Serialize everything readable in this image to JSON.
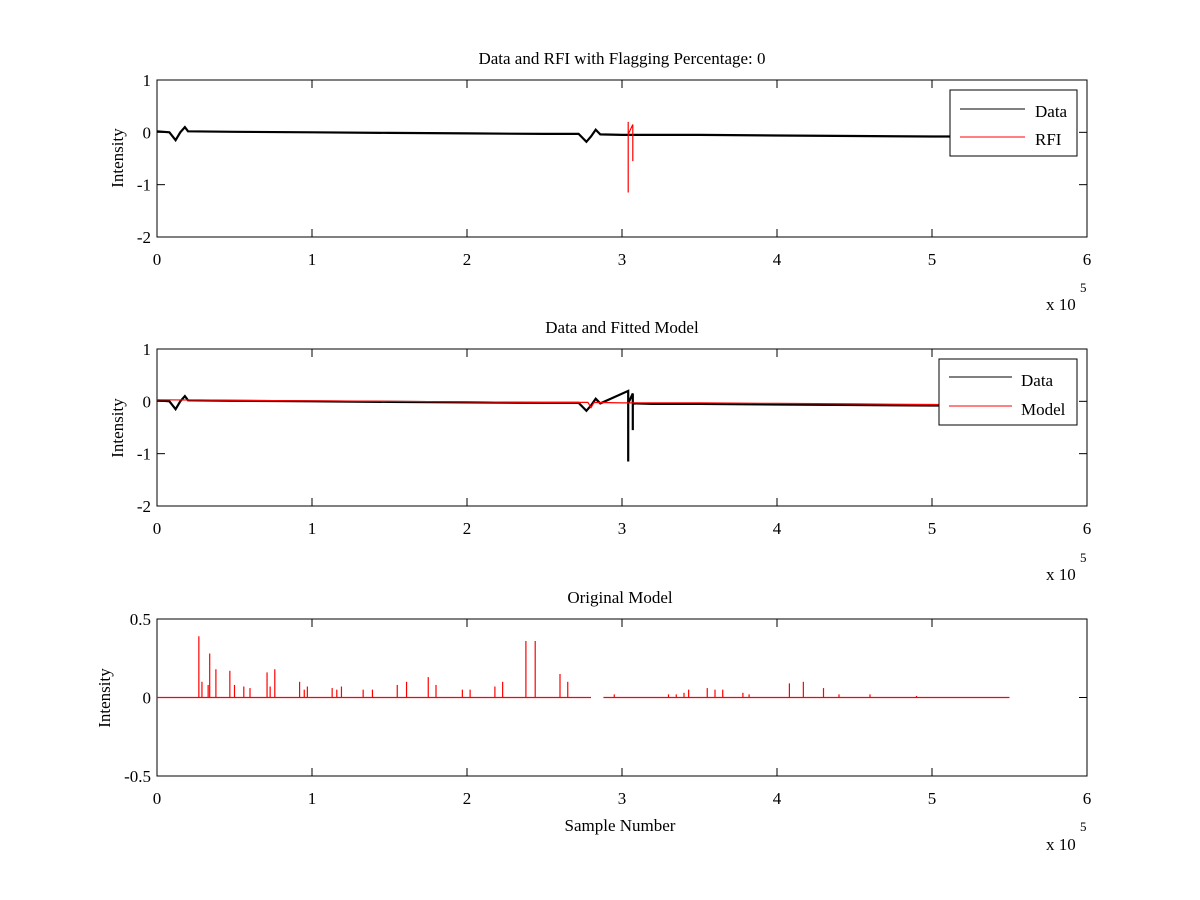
{
  "chart_data": [
    {
      "type": "line",
      "title": "Data and RFI with Flagging Percentage: 0",
      "xlabel": "",
      "ylabel": "Intensity",
      "xlim": [
        0,
        6
      ],
      "ylim": [
        -2,
        1
      ],
      "x_scale_label": "x 10",
      "x_scale_exponent": "5",
      "xticks": [
        "0",
        "1",
        "2",
        "3",
        "4",
        "5",
        "6"
      ],
      "yticks": [
        "-2",
        "-1",
        "0",
        "1"
      ],
      "grid": false,
      "legend_location": "top-right",
      "series": [
        {
          "name": "Data",
          "color": "#000000",
          "x": [
            0,
            0.08,
            0.12,
            0.15,
            0.18,
            0.2,
            0.5,
            1.0,
            1.5,
            2.0,
            2.5,
            2.72,
            2.77,
            2.8,
            2.83,
            2.86,
            3.0,
            3.5,
            4.0,
            4.5,
            5.0,
            5.5
          ],
          "y": [
            0.02,
            0.0,
            -0.15,
            0.0,
            0.1,
            0.02,
            0.01,
            0.0,
            -0.01,
            -0.02,
            -0.03,
            -0.03,
            -0.18,
            -0.08,
            0.05,
            -0.04,
            -0.05,
            -0.05,
            -0.06,
            -0.07,
            -0.08,
            -0.08
          ]
        },
        {
          "name": "RFI",
          "color": "#ff0000",
          "x": [
            3.04,
            3.04,
            3.04,
            3.07,
            3.07,
            3.07
          ],
          "y": [
            0.2,
            -1.15,
            -0.04,
            0.15,
            -0.55,
            -0.04
          ]
        }
      ]
    },
    {
      "type": "line",
      "title": "Data and Fitted Model",
      "xlabel": "",
      "ylabel": "Intensity",
      "xlim": [
        0,
        6
      ],
      "ylim": [
        -2,
        1
      ],
      "x_scale_label": "x 10",
      "x_scale_exponent": "5",
      "xticks": [
        "0",
        "1",
        "2",
        "3",
        "4",
        "5",
        "6"
      ],
      "yticks": [
        "-2",
        "-1",
        "0",
        "1"
      ],
      "grid": false,
      "legend_location": "top-right",
      "series": [
        {
          "name": "Data",
          "color": "#000000",
          "x": [
            0,
            0.08,
            0.12,
            0.15,
            0.18,
            0.2,
            0.5,
            1.0,
            1.5,
            2.0,
            2.5,
            2.72,
            2.77,
            2.8,
            2.83,
            2.86,
            3.04,
            3.04,
            3.04,
            3.07,
            3.07,
            3.07,
            3.2,
            3.5,
            4.0,
            4.5,
            5.0,
            5.5
          ],
          "y": [
            0.02,
            0.0,
            -0.15,
            0.0,
            0.1,
            0.02,
            0.01,
            0.0,
            -0.01,
            -0.02,
            -0.03,
            -0.03,
            -0.18,
            -0.08,
            0.05,
            -0.04,
            0.2,
            -1.15,
            -0.04,
            0.15,
            -0.55,
            -0.04,
            -0.05,
            -0.05,
            -0.06,
            -0.07,
            -0.08,
            -0.08
          ]
        },
        {
          "name": "Model",
          "color": "#ff0000",
          "x": [
            0,
            0.5,
            1.0,
            1.5,
            2.0,
            2.5,
            2.78,
            2.8,
            2.82,
            3.0,
            3.5,
            4.0,
            4.5,
            5.0,
            5.5
          ],
          "y": [
            0.03,
            0.02,
            0.01,
            0.0,
            -0.01,
            -0.02,
            -0.02,
            -0.12,
            -0.02,
            -0.03,
            -0.03,
            -0.04,
            -0.05,
            -0.06,
            -0.07
          ]
        }
      ]
    },
    {
      "type": "line",
      "title": "Original Model",
      "xlabel": "Sample Number",
      "ylabel": "Intensity",
      "xlim": [
        0,
        6
      ],
      "ylim": [
        -0.5,
        0.5
      ],
      "x_scale_label": "x 10",
      "x_scale_exponent": "5",
      "xticks": [
        "0",
        "1",
        "2",
        "3",
        "4",
        "5",
        "6"
      ],
      "yticks": [
        "-0.5",
        "0",
        "0.5"
      ],
      "grid": false,
      "legend_location": "none",
      "series": [
        {
          "color": "#ff0000",
          "x_range": [
            0,
            5.5
          ],
          "baseline": 0,
          "gap": [
            2.8,
            2.88
          ],
          "spikes": [
            [
              0.27,
              0.39
            ],
            [
              0.34,
              0.28
            ],
            [
              0.38,
              0.18
            ],
            [
              0.29,
              0.1
            ],
            [
              0.33,
              0.08
            ],
            [
              0.47,
              0.17
            ],
            [
              0.5,
              0.08
            ],
            [
              0.56,
              0.07
            ],
            [
              0.6,
              0.06
            ],
            [
              0.71,
              0.16
            ],
            [
              0.76,
              0.18
            ],
            [
              0.73,
              0.07
            ],
            [
              0.92,
              0.1
            ],
            [
              0.97,
              0.07
            ],
            [
              0.95,
              0.05
            ],
            [
              1.13,
              0.06
            ],
            [
              1.19,
              0.07
            ],
            [
              1.16,
              0.05
            ],
            [
              1.33,
              0.05
            ],
            [
              1.39,
              0.05
            ],
            [
              1.55,
              0.08
            ],
            [
              1.61,
              0.1
            ],
            [
              1.75,
              0.13
            ],
            [
              1.8,
              0.08
            ],
            [
              1.97,
              0.05
            ],
            [
              2.02,
              0.05
            ],
            [
              2.18,
              0.07
            ],
            [
              2.23,
              0.1
            ],
            [
              2.38,
              0.36
            ],
            [
              2.44,
              0.36
            ],
            [
              2.6,
              0.15
            ],
            [
              2.65,
              0.1
            ],
            [
              2.95,
              0.02
            ],
            [
              3.3,
              0.02
            ],
            [
              3.35,
              0.02
            ],
            [
              3.4,
              0.03
            ],
            [
              3.43,
              0.05
            ],
            [
              3.55,
              0.06
            ],
            [
              3.6,
              0.05
            ],
            [
              3.65,
              0.05
            ],
            [
              3.78,
              0.03
            ],
            [
              3.82,
              0.02
            ],
            [
              4.08,
              0.09
            ],
            [
              4.17,
              0.1
            ],
            [
              4.3,
              0.06
            ],
            [
              4.4,
              0.02
            ],
            [
              4.6,
              0.02
            ],
            [
              4.9,
              0.01
            ]
          ]
        }
      ]
    }
  ]
}
